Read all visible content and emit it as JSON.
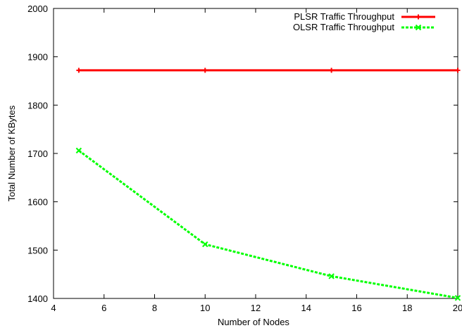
{
  "chart_data": {
    "type": "line",
    "xlabel": "Number of Nodes",
    "ylabel": "Total Number of KBytes",
    "xlim": [
      4,
      20
    ],
    "ylim": [
      1400,
      2000
    ],
    "xticks": [
      4,
      6,
      8,
      10,
      12,
      14,
      16,
      18,
      20
    ],
    "yticks": [
      1400,
      1500,
      1600,
      1700,
      1800,
      1900,
      2000
    ],
    "grid": false,
    "legend_position": "top-right",
    "series": [
      {
        "name": "PLSR Traffic Throughput",
        "color": "#ff0000",
        "marker": "plus",
        "x": [
          5,
          10,
          15,
          20
        ],
        "y": [
          1872,
          1872,
          1872,
          1872
        ]
      },
      {
        "name": "OLSR Traffic Throughput",
        "color": "#00ff00",
        "marker": "cross",
        "dashed": true,
        "x": [
          5,
          10,
          15,
          20
        ],
        "y": [
          1706,
          1512,
          1446,
          1401
        ]
      }
    ]
  }
}
